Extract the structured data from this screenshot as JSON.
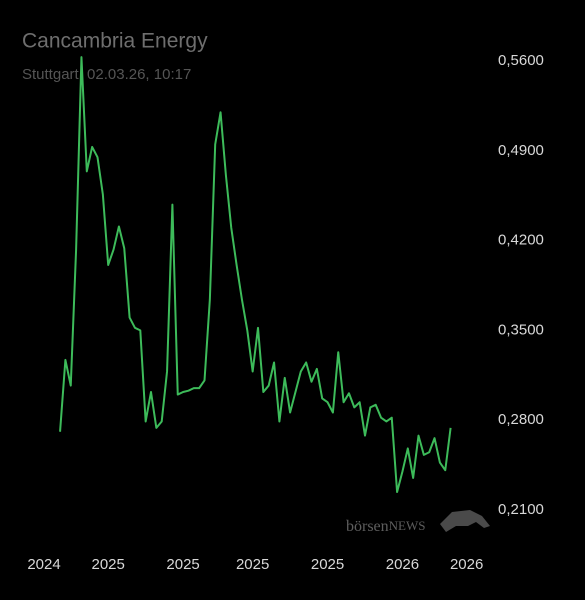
{
  "chart_data": {
    "type": "line",
    "title": "Cancambria Energy",
    "subtitle": "Stuttgart, 02.03.26, 10:17",
    "watermark": {
      "brand": "börsen",
      "brand_suffix": "NEWS"
    },
    "categories": [
      "2024",
      null,
      null,
      null,
      null,
      null,
      null,
      null,
      null,
      null,
      null,
      null,
      "2025",
      null,
      null,
      null,
      null,
      null,
      null,
      null,
      null,
      null,
      null,
      null,
      null,
      null,
      "2025",
      null,
      null,
      null,
      null,
      null,
      null,
      null,
      null,
      null,
      null,
      null,
      null,
      "2025",
      null,
      null,
      null,
      null,
      null,
      null,
      null,
      null,
      null,
      null,
      null,
      null,
      null,
      "2025",
      null,
      null,
      null,
      null,
      null,
      null,
      null,
      null,
      null,
      null,
      null,
      null,
      null,
      "2026",
      null,
      null,
      null,
      null,
      null,
      null,
      null,
      null,
      null,
      null,
      null,
      "2026"
    ],
    "series": [
      {
        "name": "Cancambria Energy",
        "color": "#3dbb5a",
        "values": [
          null,
          null,
          null,
          0.271,
          0.327,
          0.307,
          0.413,
          0.563,
          0.474,
          0.493,
          0.485,
          0.456,
          0.401,
          0.413,
          0.431,
          0.414,
          0.36,
          0.352,
          0.35,
          0.279,
          0.302,
          0.274,
          0.279,
          0.318,
          0.448,
          0.3,
          0.302,
          0.303,
          0.305,
          0.305,
          0.311,
          0.374,
          0.495,
          0.52,
          0.471,
          0.43,
          0.401,
          0.374,
          0.35,
          0.318,
          0.352,
          0.302,
          0.307,
          0.325,
          0.279,
          0.313,
          0.286,
          0.302,
          0.318,
          0.325,
          0.31,
          0.32,
          0.297,
          0.294,
          0.286,
          0.333,
          0.294,
          0.301,
          0.29,
          0.294,
          0.268,
          0.29,
          0.292,
          0.282,
          0.279,
          0.282,
          0.224,
          0.24,
          0.258,
          0.235,
          0.268,
          0.253,
          0.255,
          0.266,
          0.247,
          0.241,
          0.274,
          null,
          null,
          null
        ]
      }
    ],
    "ylim": [
      0.21,
      0.56
    ],
    "yticks": [
      {
        "value": 0.21,
        "label": "0,2100"
      },
      {
        "value": 0.28,
        "label": "0,2800"
      },
      {
        "value": 0.35,
        "label": "0,3500"
      },
      {
        "value": 0.42,
        "label": "0,4200"
      },
      {
        "value": 0.49,
        "label": "0,4900"
      },
      {
        "value": 0.56,
        "label": "0,5600"
      }
    ],
    "grid": false
  }
}
